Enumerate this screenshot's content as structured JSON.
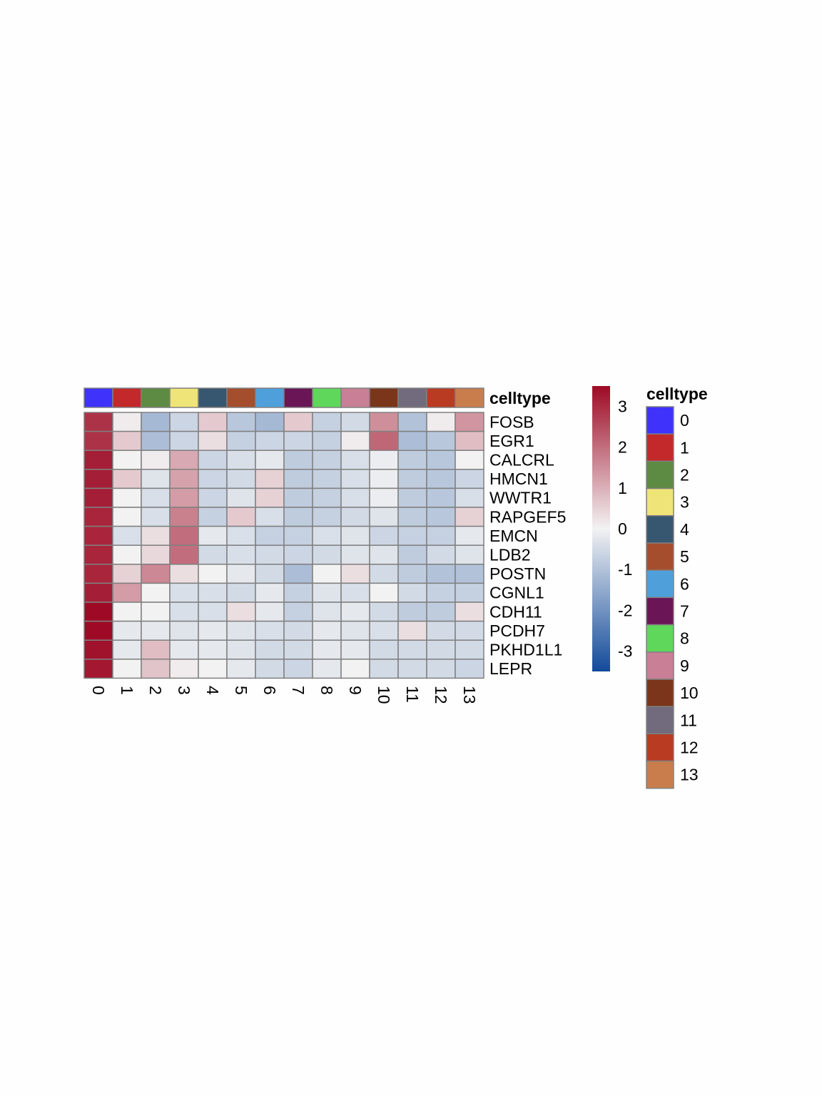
{
  "chart_data": {
    "type": "heatmap",
    "annotation_label": "celltype",
    "legend_title": "celltype",
    "columns": [
      "0",
      "1",
      "2",
      "3",
      "4",
      "5",
      "6",
      "7",
      "8",
      "9",
      "10",
      "11",
      "12",
      "13"
    ],
    "column_colors": [
      "#3f32fb",
      "#c3292a",
      "#5e8b43",
      "#efe477",
      "#375670",
      "#a54e2d",
      "#4fa0da",
      "#6a1556",
      "#5ed75a",
      "#c97f96",
      "#7b351b",
      "#726b7d",
      "#b83b22",
      "#c97d4c"
    ],
    "rows": [
      "FOSB",
      "EGR1",
      "CALCRL",
      "HMCN1",
      "WWTR1",
      "RAPGEF5",
      "EMCN",
      "LDB2",
      "POSTN",
      "CGNL1",
      "CDH11",
      "PCDH7",
      "PKHD1L1",
      "LEPR"
    ],
    "values": [
      [
        2.9,
        0.1,
        -1.2,
        -0.6,
        0.6,
        -0.9,
        -1.2,
        0.6,
        -0.7,
        -0.5,
        1.5,
        -1.0,
        0.1,
        1.4
      ],
      [
        2.9,
        0.6,
        -1.1,
        -0.6,
        0.3,
        -0.7,
        -0.6,
        -0.6,
        -0.7,
        0.1,
        2.1,
        -1.1,
        -0.9,
        0.8
      ],
      [
        3.2,
        0.0,
        0.1,
        1.1,
        -0.6,
        -0.4,
        -0.2,
        -0.8,
        -0.7,
        -0.4,
        -0.1,
        -0.8,
        -0.9,
        0.0
      ],
      [
        3.2,
        0.6,
        -0.3,
        1.2,
        -0.6,
        -0.5,
        0.5,
        -0.8,
        -0.7,
        -0.4,
        -0.1,
        -0.8,
        -0.9,
        -0.6
      ],
      [
        3.2,
        0.0,
        -0.4,
        1.3,
        -0.6,
        -0.3,
        0.5,
        -0.8,
        -0.7,
        -0.4,
        -0.1,
        -0.8,
        -0.9,
        -0.4
      ],
      [
        3.1,
        0.0,
        -0.4,
        1.7,
        -0.7,
        0.6,
        -0.4,
        -0.8,
        -0.7,
        -0.5,
        -0.3,
        -0.8,
        -0.9,
        0.5
      ],
      [
        3.1,
        -0.4,
        0.3,
        2.0,
        -0.2,
        -0.4,
        -0.7,
        -0.7,
        -0.4,
        -0.3,
        -0.6,
        -0.7,
        -0.7,
        -0.2
      ],
      [
        3.1,
        0.0,
        0.4,
        2.0,
        -0.5,
        -0.4,
        -0.5,
        -0.6,
        -0.5,
        -0.3,
        -0.3,
        -0.8,
        -0.5,
        -0.3
      ],
      [
        3.1,
        0.5,
        1.6,
        0.3,
        0.0,
        -0.2,
        -0.5,
        -1.1,
        0.0,
        0.3,
        -0.5,
        -0.8,
        -1.0,
        -1.0
      ],
      [
        3.2,
        1.3,
        0.0,
        -0.4,
        -0.4,
        -0.5,
        -0.2,
        -0.7,
        -0.3,
        -0.4,
        0.0,
        -0.5,
        -0.7,
        -0.7
      ],
      [
        3.6,
        0.0,
        0.0,
        -0.4,
        -0.4,
        0.3,
        -0.2,
        -0.7,
        -0.3,
        -0.2,
        -0.5,
        -0.8,
        -0.8,
        0.3
      ],
      [
        3.5,
        -0.2,
        -0.2,
        -0.3,
        -0.2,
        -0.3,
        -0.4,
        -0.5,
        -0.2,
        -0.3,
        -0.4,
        0.3,
        -0.5,
        -0.5
      ],
      [
        3.4,
        -0.2,
        0.8,
        -0.2,
        -0.2,
        -0.3,
        -0.5,
        -0.5,
        -0.2,
        -0.2,
        -0.5,
        -0.5,
        -0.5,
        -0.5
      ],
      [
        3.3,
        0.0,
        0.7,
        0.1,
        0.0,
        -0.2,
        -0.5,
        -0.6,
        -0.2,
        0.0,
        -0.5,
        -0.5,
        -0.5,
        -0.6
      ]
    ],
    "color_scale": {
      "low": "#124a9b",
      "mid": "#f2f2f2",
      "high": "#9e0a25",
      "range": [
        -3.5,
        3.5
      ]
    },
    "colorbar_ticks": [
      "3",
      "2",
      "1",
      "0",
      "-1",
      "-2",
      "-3"
    ],
    "colorbar_tick_values": [
      3,
      2,
      1,
      0,
      -1,
      -2,
      -3
    ]
  }
}
